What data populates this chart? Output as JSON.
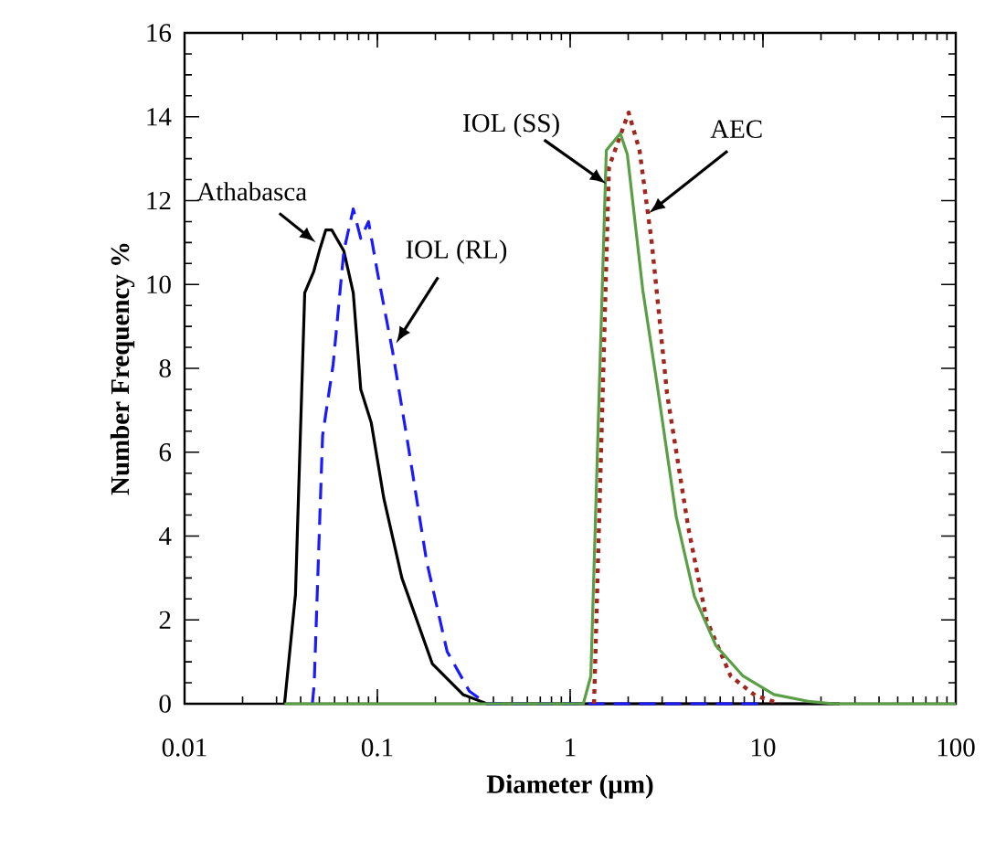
{
  "chart_data": {
    "type": "line",
    "xlabel": "Diameter (µm)",
    "ylabel": "Number Frequency %",
    "log": "x",
    "xlim": [
      0.01,
      100
    ],
    "xticks": [
      0.01,
      0.1,
      1,
      10,
      100
    ],
    "ylim": [
      0,
      16
    ],
    "yticks": [
      0,
      2,
      4,
      6,
      8,
      10,
      12,
      14,
      16
    ],
    "marker": "none",
    "series": [
      {
        "color": "#000000",
        "line_style": "solid",
        "x": [
          0.033,
          0.0376,
          0.042,
          0.0467,
          0.05,
          0.054,
          0.058,
          0.067,
          0.075,
          0.082,
          0.093,
          0.108,
          0.134,
          0.193,
          0.278,
          0.37,
          25
        ],
        "values": [
          0,
          2.6,
          9.8,
          10.3,
          10.8,
          11.3,
          11.3,
          10.8,
          9.8,
          7.5,
          6.7,
          4.9,
          3.0,
          0.95,
          0.22,
          0,
          0
        ]
      },
      {
        "color": "#1a1aff",
        "line_style": "dashed",
        "x": [
          0.046,
          0.047,
          0.052,
          0.059,
          0.067,
          0.075,
          0.082,
          0.09,
          0.1,
          0.12,
          0.144,
          0.18,
          0.23,
          0.3,
          0.37,
          10
        ],
        "values": [
          0,
          0.45,
          6.4,
          8.1,
          10.8,
          11.8,
          11.1,
          11.5,
          10.3,
          8.4,
          6.2,
          3.4,
          1.25,
          0.3,
          0,
          0
        ]
      },
      {
        "color": "#a0261e",
        "line_style": "dotted",
        "x": [
          1.33,
          1.43,
          1.59,
          2.01,
          2.29,
          2.65,
          3.18,
          4.1,
          5.1,
          6.8,
          9.1,
          12.2
        ],
        "values": [
          0,
          5.2,
          12.8,
          14.1,
          13.2,
          11.0,
          7.4,
          4.2,
          2.0,
          0.66,
          0.2,
          0
        ]
      },
      {
        "color": "#5a9e46",
        "line_style": "solid",
        "x": [
          0.033,
          1.17,
          1.28,
          1.54,
          1.82,
          1.98,
          2.38,
          2.85,
          3.55,
          4.41,
          5.69,
          7.89,
          11.4,
          17.6,
          23.5,
          100
        ],
        "values": [
          0,
          0,
          0.66,
          13.2,
          13.6,
          13.1,
          9.87,
          7.5,
          4.46,
          2.56,
          1.39,
          0.66,
          0.22,
          0.05,
          0,
          0
        ]
      }
    ],
    "annotations": [
      {
        "text": "Athabasca",
        "x": 0.048,
        "y": 11
      },
      {
        "text": "IOL (RL)",
        "x": 0.125,
        "y": 8.6
      },
      {
        "text": "IOL (SS)",
        "x": 1.54,
        "y": 12.4
      },
      {
        "text": "AEC",
        "x": 2.56,
        "y": 11.7
      }
    ]
  }
}
